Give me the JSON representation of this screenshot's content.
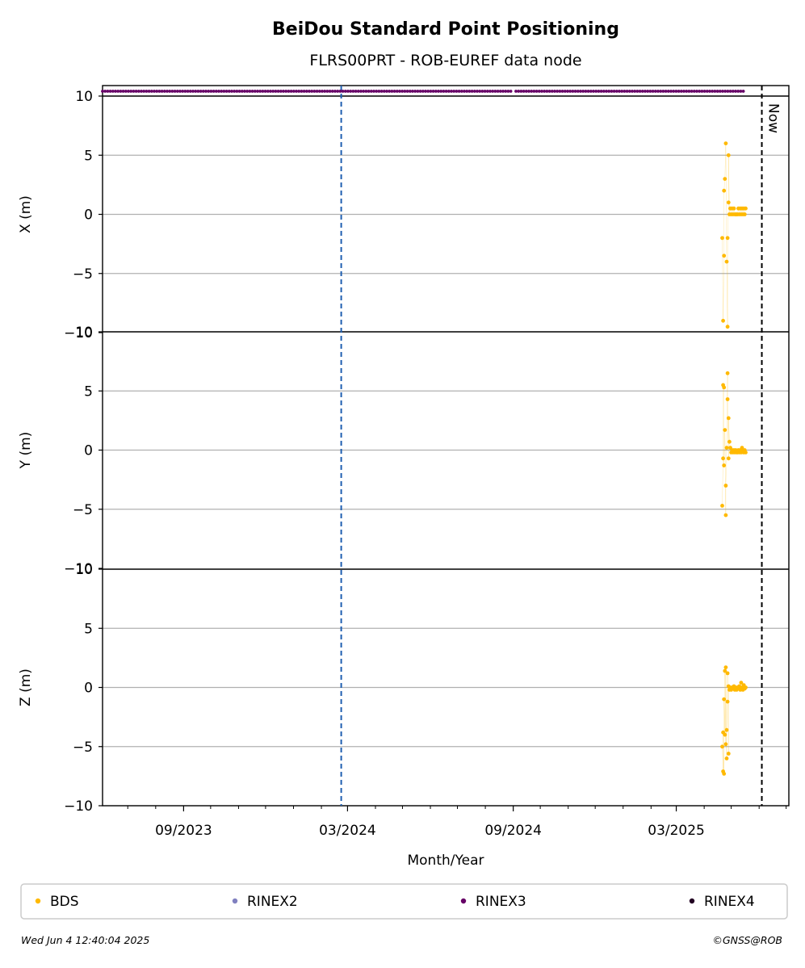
{
  "chart_data": {
    "type": "scatter",
    "title": "BeiDou Standard Point Positioning",
    "subtitle": "FLRS00PRT - ROB-EUREF data node",
    "xlabel": "Month/Year",
    "x_ticks": [
      "09/2023",
      "03/2024",
      "09/2024",
      "03/2025"
    ],
    "x_range": [
      "2023-06-03",
      "2025-07-04"
    ],
    "now_label": "Now",
    "now_date": "2025-06-04",
    "event_date": "2024-02-23",
    "y_ticks": [
      "−10",
      "−5",
      "0",
      "5",
      "10"
    ],
    "panels": [
      {
        "ylabel": "X (m)",
        "ylim": [
          -10,
          10
        ],
        "series": [
          {
            "name": "BDS",
            "x": [
              "2025-04-21",
              "2025-04-22",
              "2025-04-23",
              "2025-04-23",
              "2025-04-24",
              "2025-04-25",
              "2025-04-26",
              "2025-04-27",
              "2025-04-27",
              "2025-04-28",
              "2025-04-28",
              "2025-04-29",
              "2025-04-30",
              "2025-05-01",
              "2025-05-02",
              "2025-05-03",
              "2025-05-04",
              "2025-05-05",
              "2025-05-06",
              "2025-05-07",
              "2025-05-08",
              "2025-05-09",
              "2025-05-10",
              "2025-05-11",
              "2025-05-12",
              "2025-05-13",
              "2025-05-14",
              "2025-05-15",
              "2025-05-16",
              "2025-05-17"
            ],
            "y": [
              -2,
              -9,
              -3.5,
              2,
              3,
              6,
              -4,
              -9.5,
              -2,
              1,
              5,
              0,
              0.5,
              0,
              0.5,
              0,
              0.5,
              0,
              0,
              0,
              0,
              0.5,
              0,
              0.5,
              0,
              0.5,
              0,
              0.5,
              0,
              0.5
            ]
          }
        ]
      },
      {
        "ylabel": "Y (m)",
        "ylim": [
          -10,
          10
        ],
        "series": [
          {
            "name": "BDS",
            "x": [
              "2025-04-21",
              "2025-04-22",
              "2025-04-22",
              "2025-04-23",
              "2025-04-23",
              "2025-04-24",
              "2025-04-25",
              "2025-04-25",
              "2025-04-26",
              "2025-04-27",
              "2025-04-27",
              "2025-04-28",
              "2025-04-28",
              "2025-04-29",
              "2025-04-30",
              "2025-05-01",
              "2025-05-02",
              "2025-05-03",
              "2025-05-04",
              "2025-05-05",
              "2025-05-06",
              "2025-05-07",
              "2025-05-08",
              "2025-05-09",
              "2025-05-10",
              "2025-05-11",
              "2025-05-12",
              "2025-05-13",
              "2025-05-14",
              "2025-05-15",
              "2025-05-16",
              "2025-05-17"
            ],
            "y": [
              -4.7,
              -0.7,
              5.5,
              5.3,
              -1.3,
              1.7,
              -5.5,
              -3,
              0.2,
              6.5,
              4.3,
              -0.7,
              2.7,
              0.7,
              0.2,
              -0.2,
              0,
              -0.2,
              0,
              -0.2,
              0,
              -0.2,
              -0.2,
              0,
              -0.2,
              0,
              -0.2,
              0.2,
              0,
              -0.2,
              0,
              -0.2
            ]
          }
        ]
      },
      {
        "ylabel": "Z (m)",
        "ylim": [
          -10,
          10
        ],
        "series": [
          {
            "name": "BDS",
            "x": [
              "2025-04-21",
              "2025-04-22",
              "2025-04-22",
              "2025-04-23",
              "2025-04-23",
              "2025-04-24",
              "2025-04-24",
              "2025-04-25",
              "2025-04-25",
              "2025-04-26",
              "2025-04-26",
              "2025-04-27",
              "2025-04-27",
              "2025-04-28",
              "2025-04-28",
              "2025-04-29",
              "2025-04-30",
              "2025-05-01",
              "2025-05-02",
              "2025-05-03",
              "2025-05-04",
              "2025-05-05",
              "2025-05-06",
              "2025-05-07",
              "2025-05-08",
              "2025-05-09",
              "2025-05-10",
              "2025-05-11",
              "2025-05-12",
              "2025-05-13",
              "2025-05-14",
              "2025-05-15",
              "2025-05-16",
              "2025-05-17"
            ],
            "y": [
              -5,
              -7.1,
              -3.8,
              -7.3,
              -1,
              -4,
              1.4,
              -4.8,
              1.7,
              -6,
              -3.6,
              -1.2,
              1.2,
              -5.6,
              0.1,
              -0.2,
              0,
              -0.2,
              0,
              -0.1,
              0.1,
              -0.2,
              0,
              -0.2,
              0,
              -0.1,
              0.1,
              -0.2,
              0.4,
              0,
              -0.2,
              0.2,
              -0.1,
              0
            ]
          }
        ]
      }
    ],
    "rinex_bar": {
      "name": "RINEX3",
      "from": "2023-06-03",
      "to": "2025-05-17",
      "gap": "2024-09-01"
    },
    "legend": [
      {
        "label": "BDS",
        "color": "#ffb900"
      },
      {
        "label": "RINEX2",
        "color": "#8080c0"
      },
      {
        "label": "RINEX3",
        "color": "#660066"
      },
      {
        "label": "RINEX4",
        "color": "#220022"
      }
    ],
    "legend_placement": "bottom",
    "grid": "horizontal"
  },
  "footer": {
    "timestamp": "Wed Jun  4 12:40:04 2025",
    "credit": "©GNSS@ROB"
  }
}
